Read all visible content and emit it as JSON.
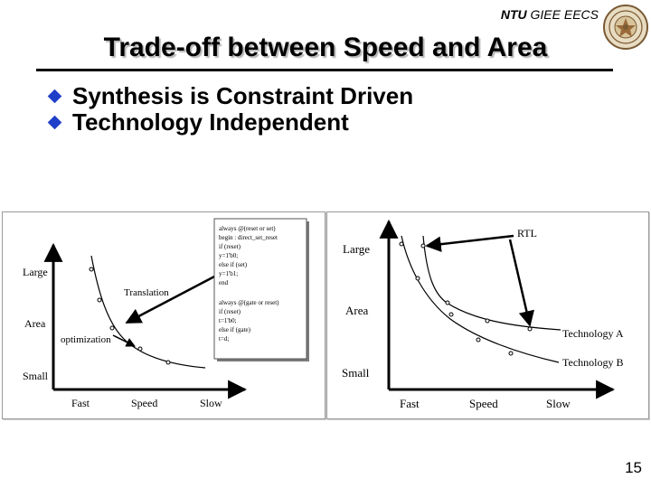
{
  "header": {
    "org_bold": "NTU",
    "org_rest": " GIEE EECS"
  },
  "slide": {
    "title": "Trade-off between Speed and Area",
    "bullets": [
      "Synthesis is Constraint Driven",
      "Technology Independent"
    ],
    "page_number": "15"
  },
  "figure_left": {
    "y_labels": [
      "Large",
      "Area",
      "Small"
    ],
    "x_labels": [
      "Fast",
      "Speed",
      "Slow"
    ],
    "translation_label": "Translation",
    "optimization_label": "optimization",
    "code_lines": [
      "always @(reset or set)",
      "begin : direct_set_reset",
      "if (reset)",
      "y=1'b0;",
      "else if (set)",
      "y=1'b1;",
      "end",
      "",
      "always @(gate or reset)",
      "if (reset)",
      "t=1'b0;",
      "else if (gate)",
      "t=d;"
    ]
  },
  "figure_right": {
    "y_labels": [
      "Large",
      "Area",
      "Small"
    ],
    "x_labels": [
      "Fast",
      "Speed",
      "Slow"
    ],
    "rtl_label": "RTL",
    "tech_a_label": "Technology A",
    "tech_b_label": "Technology B"
  }
}
